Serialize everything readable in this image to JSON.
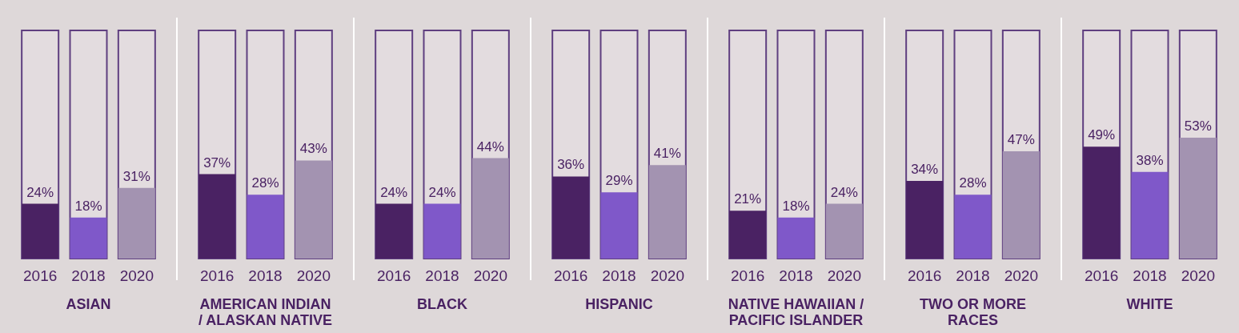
{
  "chart_data": [
    {
      "type": "bar",
      "xlabel": "ASIAN",
      "categories": [
        "2016",
        "2018",
        "2020"
      ],
      "values": [
        24,
        18,
        31
      ],
      "value_labels": [
        "24%",
        "18%",
        "31%"
      ],
      "colors": [
        "#4a2263",
        "#7f58c9",
        "#a393b1"
      ],
      "ylim": [
        0,
        100
      ],
      "tick_labels": "x",
      "grid": false
    },
    {
      "type": "bar",
      "xlabel": "AMERICAN INDIAN\n/ ALASKAN NATIVE",
      "categories": [
        "2016",
        "2018",
        "2020"
      ],
      "values": [
        37,
        28,
        43
      ],
      "value_labels": [
        "37%",
        "28%",
        "43%"
      ],
      "colors": [
        "#4a2263",
        "#7f58c9",
        "#a393b1"
      ],
      "ylim": [
        0,
        100
      ],
      "tick_labels": "x",
      "grid": false
    },
    {
      "type": "bar",
      "xlabel": "BLACK",
      "categories": [
        "2016",
        "2018",
        "2020"
      ],
      "values": [
        24,
        24,
        44
      ],
      "value_labels": [
        "24%",
        "24%",
        "44%"
      ],
      "colors": [
        "#4a2263",
        "#7f58c9",
        "#a393b1"
      ],
      "ylim": [
        0,
        100
      ],
      "tick_labels": "x",
      "grid": false
    },
    {
      "type": "bar",
      "xlabel": "HISPANIC",
      "categories": [
        "2016",
        "2018",
        "2020"
      ],
      "values": [
        36,
        29,
        41
      ],
      "value_labels": [
        "36%",
        "29%",
        "41%"
      ],
      "colors": [
        "#4a2263",
        "#7f58c9",
        "#a393b1"
      ],
      "ylim": [
        0,
        100
      ],
      "tick_labels": "x",
      "grid": false
    },
    {
      "type": "bar",
      "xlabel": "NATIVE HAWAIIAN /\nPACIFIC ISLANDER",
      "categories": [
        "2016",
        "2018",
        "2020"
      ],
      "values": [
        21,
        18,
        24
      ],
      "value_labels": [
        "21%",
        "18%",
        "24%"
      ],
      "colors": [
        "#4a2263",
        "#7f58c9",
        "#a393b1"
      ],
      "ylim": [
        0,
        100
      ],
      "tick_labels": "x",
      "grid": false
    },
    {
      "type": "bar",
      "xlabel": "TWO OR MORE\nRACES",
      "categories": [
        "2016",
        "2018",
        "2020"
      ],
      "values": [
        34,
        28,
        47
      ],
      "value_labels": [
        "34%",
        "28%",
        "47%"
      ],
      "colors": [
        "#4a2263",
        "#7f58c9",
        "#a393b1"
      ],
      "ylim": [
        0,
        100
      ],
      "tick_labels": "x",
      "grid": false
    },
    {
      "type": "bar",
      "xlabel": "WHITE",
      "categories": [
        "2016",
        "2018",
        "2020"
      ],
      "values": [
        49,
        38,
        53
      ],
      "value_labels": [
        "49%",
        "38%",
        "53%"
      ],
      "colors": [
        "#4a2263",
        "#7f58c9",
        "#a393b1"
      ],
      "ylim": [
        0,
        100
      ],
      "tick_labels": "x",
      "grid": false
    }
  ]
}
